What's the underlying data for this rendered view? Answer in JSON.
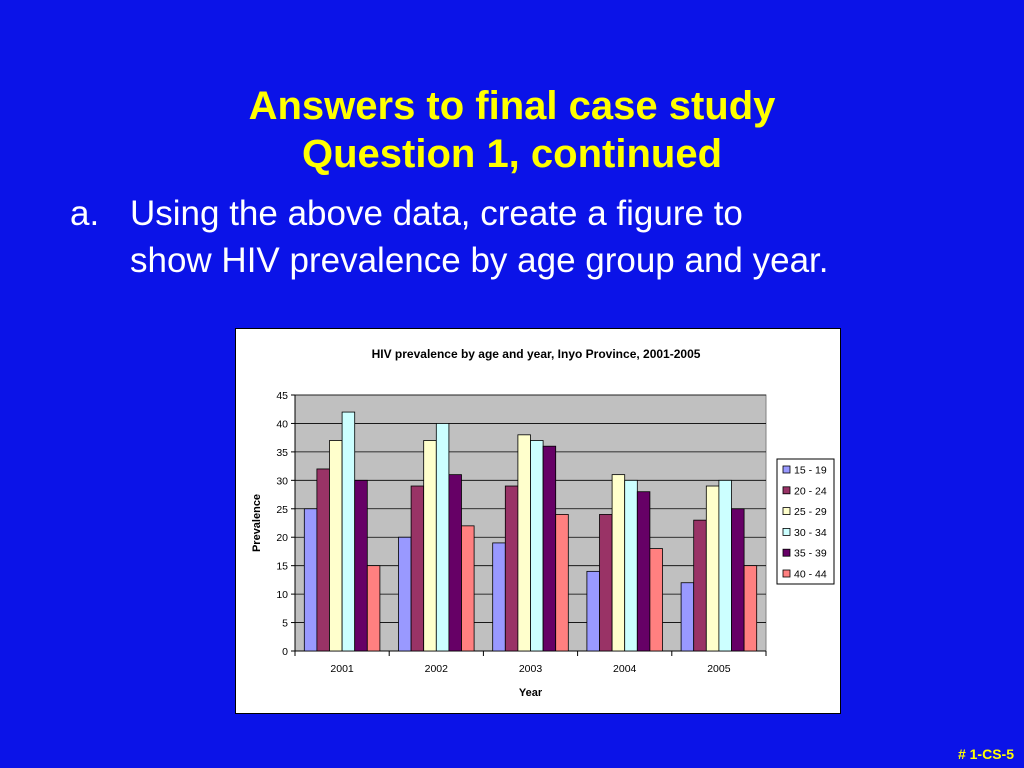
{
  "slide": {
    "title_line1": "Answers to final case study",
    "title_line2": "Question 1, continued",
    "item_marker": "a.",
    "item_text": "Using the above data, create a figure to show HIV prevalence by age group and year.",
    "footer": "# 1-CS-5"
  },
  "colors": {
    "background": "#0b13e8",
    "title": "#ffff00",
    "plot_area": "#c0c0c0"
  },
  "chart_data": {
    "type": "bar",
    "title": "HIV prevalence by age and year, Inyo Province, 2001-2005",
    "xlabel": "Year",
    "ylabel": "Prevalence",
    "ylim": [
      0,
      45
    ],
    "yticks": [
      0,
      5,
      10,
      15,
      20,
      25,
      30,
      35,
      40,
      45
    ],
    "grid": true,
    "legend_position": "right",
    "categories": [
      "2001",
      "2002",
      "2003",
      "2004",
      "2005"
    ],
    "series": [
      {
        "name": "15 - 19",
        "color": "#9999ff",
        "values": [
          25,
          20,
          19,
          14,
          12
        ]
      },
      {
        "name": "20 - 24",
        "color": "#993366",
        "values": [
          32,
          29,
          29,
          24,
          23
        ]
      },
      {
        "name": "25 - 29",
        "color": "#ffffcc",
        "values": [
          37,
          37,
          38,
          31,
          29
        ]
      },
      {
        "name": "30 - 34",
        "color": "#ccffff",
        "values": [
          42,
          40,
          37,
          30,
          30
        ]
      },
      {
        "name": "35 - 39",
        "color": "#660066",
        "values": [
          30,
          31,
          36,
          28,
          25
        ]
      },
      {
        "name": "40 - 44",
        "color": "#ff8080",
        "values": [
          15,
          22,
          24,
          18,
          15
        ]
      }
    ]
  }
}
